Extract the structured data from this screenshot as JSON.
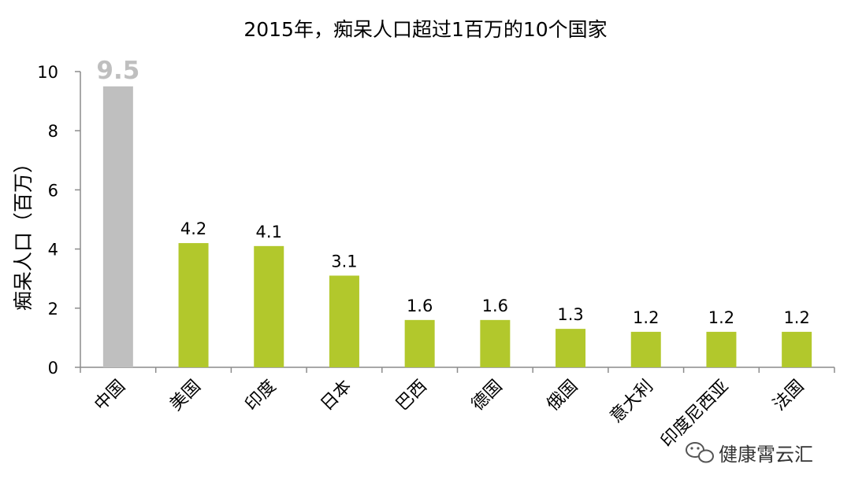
{
  "chart_data": {
    "type": "bar",
    "title": "2015年，痴呆人口超过1百万的10个国家",
    "ylabel": "痴呆人口（百万）",
    "xlabel": "",
    "ylim": [
      0,
      10
    ],
    "yticks": [
      0,
      2,
      4,
      6,
      8,
      10
    ],
    "grid": false,
    "categories": [
      "中国",
      "美国",
      "印度",
      "日本",
      "巴西",
      "德国",
      "俄国",
      "意大利",
      "印度尼西亚",
      "法国"
    ],
    "values": [
      9.5,
      4.2,
      4.1,
      3.1,
      1.6,
      1.6,
      1.3,
      1.2,
      1.2,
      1.2
    ],
    "value_labels": [
      "9.5",
      "4.2",
      "4.1",
      "3.1",
      "1.6",
      "1.6",
      "1.3",
      "1.2",
      "1.2",
      "1.2"
    ],
    "highlight_index": 0,
    "colors": {
      "default": "#b2c82c",
      "highlight": "#bfbfbf",
      "axis": "#8c8c8c"
    }
  },
  "watermark": {
    "icon": "wechat-icon",
    "text": "健康霄云汇"
  }
}
